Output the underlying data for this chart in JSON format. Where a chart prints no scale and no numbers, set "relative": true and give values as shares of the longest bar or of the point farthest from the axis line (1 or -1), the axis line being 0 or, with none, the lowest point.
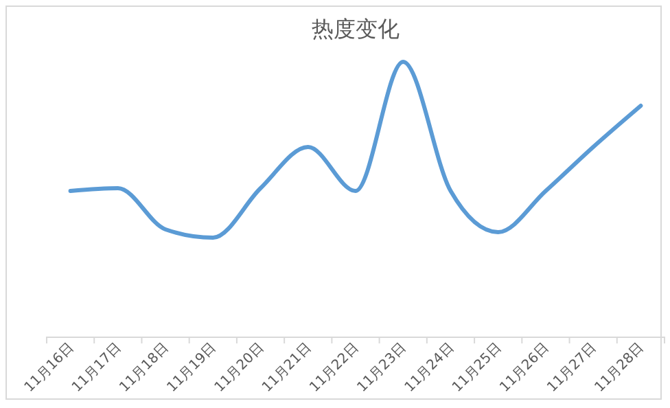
{
  "chart_data": {
    "type": "line",
    "title": "热度变化",
    "relative": true,
    "categories": [
      "11月16日",
      "11月17日",
      "11月18日",
      "11月19日",
      "11月20日",
      "11月21日",
      "11月22日",
      "11月23日",
      "11月24日",
      "11月25日",
      "11月26日",
      "11月27日",
      "11月28日"
    ],
    "series": [
      {
        "color": "#5b9bd5",
        "values": [
          0.53,
          0.54,
          0.39,
          0.36,
          0.54,
          0.69,
          0.53,
          1,
          0.53,
          0.38,
          0.53,
          0.69,
          0.84
        ]
      }
    ],
    "grid": false,
    "legend": false,
    "marker": "none",
    "line_style": "solid"
  }
}
